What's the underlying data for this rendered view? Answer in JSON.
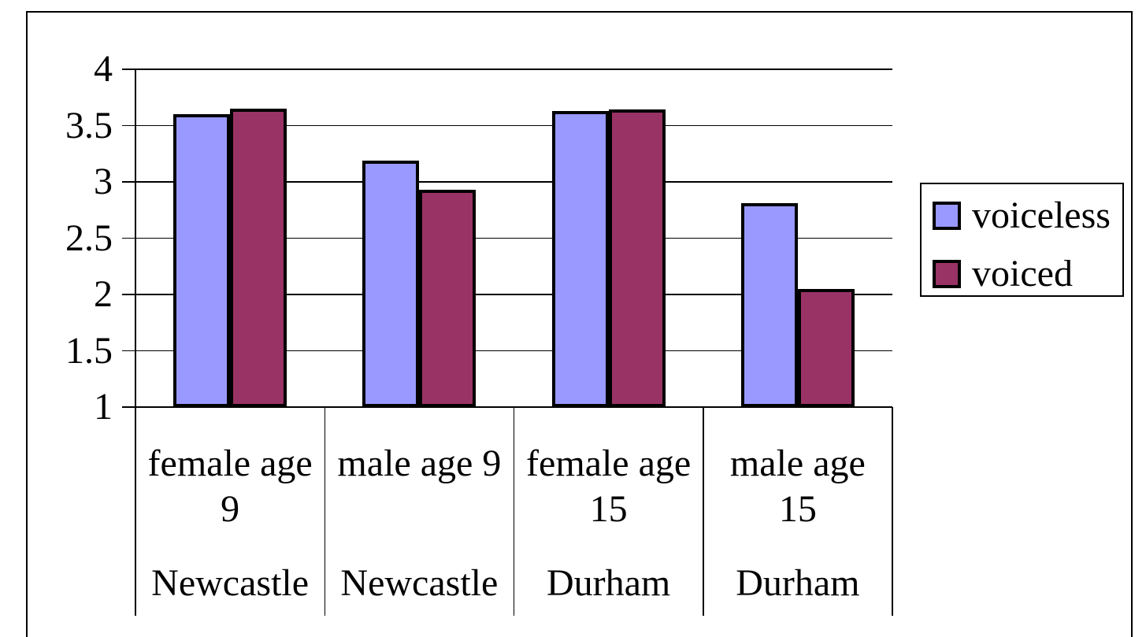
{
  "chart_data": {
    "type": "bar",
    "title": "",
    "xlabel": "",
    "ylabel": "",
    "categories": [
      {
        "label": "female age\n9",
        "group": "Newcastle"
      },
      {
        "label": "male age 9",
        "group": "Newcastle"
      },
      {
        "label": "female age\n15",
        "group": "Durham"
      },
      {
        "label": "male age\n15",
        "group": "Durham"
      }
    ],
    "series": [
      {
        "name": "voiceless",
        "color": "#9999FF",
        "values": [
          3.6,
          3.19,
          3.63,
          2.81
        ]
      },
      {
        "name": "voiced",
        "color": "#993366",
        "values": [
          3.65,
          2.93,
          3.64,
          2.05
        ]
      }
    ],
    "ylim": [
      1,
      4
    ],
    "yticks": [
      4,
      3.5,
      3,
      2.5,
      2,
      1.5,
      1
    ],
    "grid": true,
    "legend_position": "right"
  },
  "colors": {
    "axis_line": "#000000",
    "bar_border": "#000000",
    "background": "#FFFFFF",
    "text": "#000000"
  }
}
